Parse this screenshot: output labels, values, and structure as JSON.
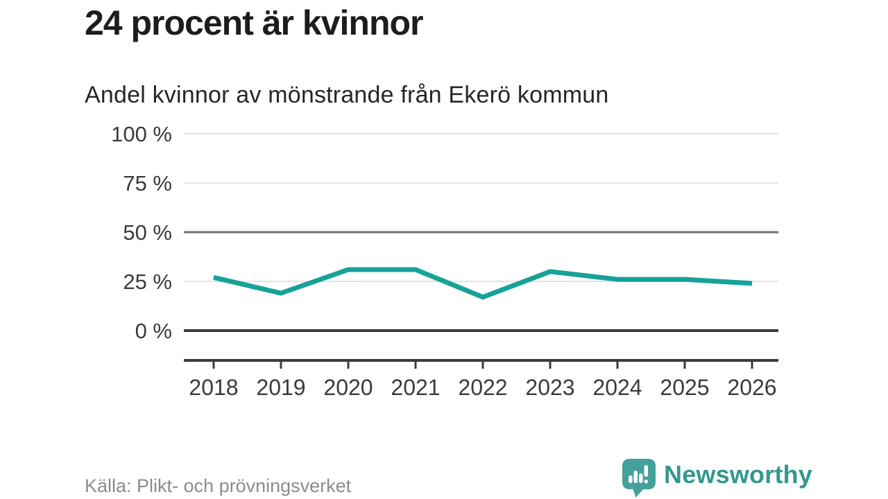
{
  "header": {
    "title": "24 procent är kvinnor",
    "subtitle": "Andel kvinnor av mönstrande från Ekerö kommun"
  },
  "footer": {
    "source": "Källa: Plikt- och prövningsverket",
    "brand": "Newsworthy"
  },
  "colors": {
    "line": "#17a298",
    "grid_light": "#e2e2e2",
    "grid_mid": "#6e6e6e",
    "axis_dark": "#3b3b3b",
    "tick_text": "#3a3a3a",
    "source_text": "#8c8c8c",
    "brand_teal": "#34978f",
    "logo_teal": "#44a09a"
  },
  "chart_data": {
    "type": "line",
    "title": "24 procent är kvinnor",
    "subtitle": "Andel kvinnor av mönstrande från Ekerö kommun",
    "categories": [
      "2018",
      "2019",
      "2020",
      "2021",
      "2022",
      "2023",
      "2024",
      "2025",
      "2026"
    ],
    "series": [
      {
        "name": "Andel kvinnor av mönstrande",
        "values": [
          27,
          19,
          31,
          31,
          17,
          30,
          26,
          26,
          24
        ]
      }
    ],
    "xlabel": "",
    "ylabel": "",
    "ylim": [
      0,
      100
    ],
    "yticks": [
      0,
      25,
      50,
      75,
      100
    ],
    "ytick_suffix": " %",
    "grid": "horizontal",
    "legend": "none",
    "line_color": "#17a298",
    "source": "Källa: Plikt- och prövningsverket"
  }
}
